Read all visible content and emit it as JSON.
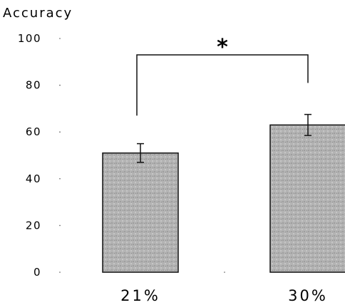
{
  "chart_data": {
    "type": "bar",
    "title": "",
    "xlabel": "",
    "ylabel": "Accuracy",
    "categories": [
      "21%",
      "30%"
    ],
    "values": [
      51,
      63
    ],
    "error": [
      4,
      4.5
    ],
    "yticks": [
      0,
      20,
      40,
      60,
      80,
      100
    ],
    "ylim": [
      0,
      100
    ],
    "grid": false,
    "bar_color": "#b3b3b3",
    "significance": {
      "label": "*",
      "between": [
        "21%",
        "30%"
      ],
      "bracket_top": 93,
      "left_drop_to": 67,
      "right_drop_to": 81
    }
  }
}
